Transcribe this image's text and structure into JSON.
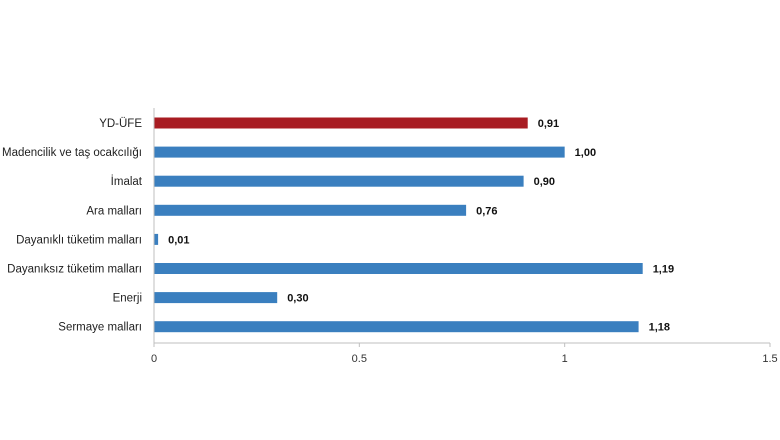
{
  "chart_data": {
    "type": "bar",
    "orientation": "horizontal",
    "title": "",
    "xlabel": "",
    "ylabel": "",
    "categories": [
      "YD-ÜFE",
      "Madencilik ve taş ocakcılığı",
      "İmalat",
      "Ara malları",
      "Dayanıklı tüketim malları",
      "Dayanıksız tüketim malları",
      "Enerji",
      "Sermaye malları"
    ],
    "values": [
      0.91,
      1.0,
      0.9,
      0.76,
      0.01,
      1.19,
      0.3,
      1.18
    ],
    "value_labels": [
      "0,91",
      "1,00",
      "0,90",
      "0,76",
      "0,01",
      "1,19",
      "0,30",
      "1,18"
    ],
    "colors": [
      "#a81c22",
      "#3a7fbf",
      "#3a7fbf",
      "#3a7fbf",
      "#3a7fbf",
      "#3a7fbf",
      "#3a7fbf",
      "#3a7fbf"
    ],
    "xlim": [
      0,
      1.5
    ],
    "xticks": [
      {
        "value": 0,
        "label": "0"
      },
      {
        "value": 0.5,
        "label": "0.5"
      },
      {
        "value": 1,
        "label": "1"
      },
      {
        "value": 1.5,
        "label": "1.5"
      }
    ],
    "grid": false,
    "legend": "none"
  }
}
